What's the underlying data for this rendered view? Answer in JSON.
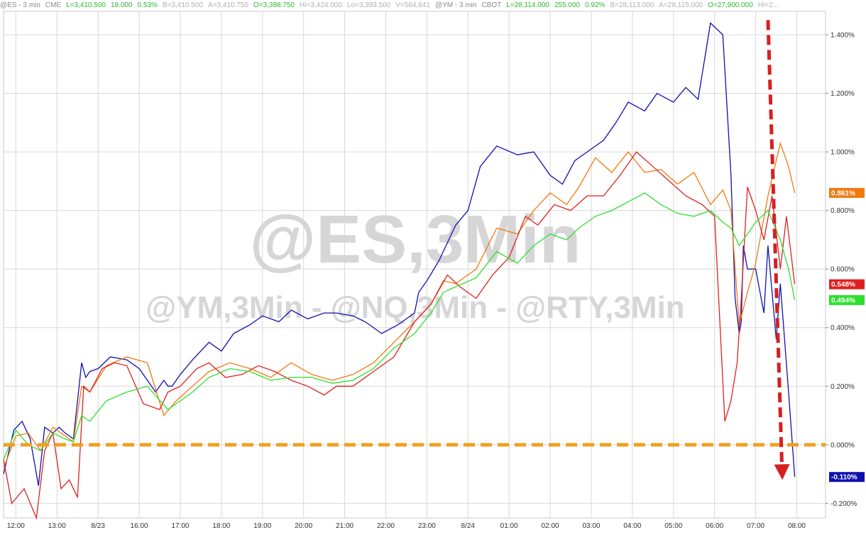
{
  "quote_bar": [
    {
      "text": "@ES - 3 min",
      "cls": "q-lbl"
    },
    {
      "text": "CME",
      "cls": "q-lbl"
    },
    {
      "text": "L=3,410.500",
      "cls": "q-val"
    },
    {
      "text": "18.000",
      "cls": "q-val"
    },
    {
      "text": "0.53%",
      "cls": "q-val"
    },
    {
      "text": "B=3,410.500",
      "cls": "q-dim"
    },
    {
      "text": "A=3,410.750",
      "cls": "q-dim"
    },
    {
      "text": "O=3,398.750",
      "cls": "q-val"
    },
    {
      "text": "Hi=3,424.000",
      "cls": "q-dim"
    },
    {
      "text": "Lo=3,393.500",
      "cls": "q-dim"
    },
    {
      "text": "V=564,641",
      "cls": "q-dim"
    },
    {
      "text": "@YM - 3 min",
      "cls": "q-lbl"
    },
    {
      "text": "CBOT",
      "cls": "q-lbl"
    },
    {
      "text": "L=28,114.000",
      "cls": "q-val"
    },
    {
      "text": "255.000",
      "cls": "q-val"
    },
    {
      "text": "0.92%",
      "cls": "q-val"
    },
    {
      "text": "B=28,113.000",
      "cls": "q-dim"
    },
    {
      "text": "A=28,115.000",
      "cls": "q-dim"
    },
    {
      "text": "O=27,900.000",
      "cls": "q-val"
    },
    {
      "text": "Hi=2...",
      "cls": "q-dim"
    }
  ],
  "chart_data": {
    "type": "line",
    "x_ticks": [
      "12:00",
      "13:00",
      "8/23",
      "16:00",
      "17:00",
      "18:00",
      "19:00",
      "20:00",
      "21:00",
      "22:00",
      "23:00",
      "8/24",
      "01:00",
      "02:00",
      "03:00",
      "04:00",
      "05:00",
      "06:00",
      "07:00",
      "08:00"
    ],
    "xlim": [
      0,
      20
    ],
    "ylim": [
      -0.25,
      1.48
    ],
    "y_ticks": [
      -0.2,
      0.0,
      0.2,
      0.4,
      0.6,
      0.8,
      1.0,
      1.2,
      1.4
    ],
    "y_tick_labels": [
      "-0.200%",
      "0.000%",
      "0.200%",
      "0.400%",
      "0.600%",
      "0.800%",
      "1.000%",
      "1.200%",
      "1.400%"
    ],
    "grid": true,
    "watermark": [
      "@ES,3Min",
      "@YM,3Min - @NQ,3Min - @RTY,3Min"
    ],
    "reference_line": {
      "y": 0.0,
      "color": "#f0a020",
      "style": "dashed"
    },
    "arrow": {
      "from": [
        18.6,
        1.45
      ],
      "to": [
        18.95,
        -0.12
      ],
      "color": "#d62020"
    },
    "series": [
      {
        "name": "@ES",
        "color": "#1010b0",
        "last_label": "-0.110%",
        "x": [
          0.0,
          0.25,
          0.45,
          0.65,
          0.85,
          1.0,
          1.1,
          1.2,
          1.35,
          1.5,
          1.7,
          1.9,
          2.0,
          2.1,
          2.3,
          2.6,
          3.0,
          3.3,
          3.7,
          3.9,
          4.0,
          4.1,
          4.3,
          4.6,
          5.0,
          5.3,
          5.6,
          6.0,
          6.3,
          6.7,
          7.0,
          7.4,
          7.8,
          8.1,
          8.5,
          8.8,
          9.2,
          9.6,
          10.0,
          10.1,
          10.3,
          10.6,
          11.0,
          11.3,
          11.6,
          12.0,
          12.5,
          12.9,
          13.3,
          13.6,
          13.9,
          14.2,
          14.6,
          14.9,
          15.2,
          15.6,
          15.9,
          16.3,
          16.6,
          16.9,
          17.2,
          17.5,
          17.7,
          17.8,
          17.9,
          17.95,
          18.0,
          18.1,
          18.3,
          18.5,
          18.6,
          18.8,
          18.9,
          19.1,
          19.25
        ],
        "y": [
          -0.1,
          0.05,
          0.08,
          0.02,
          -0.14,
          0.06,
          0.05,
          0.04,
          0.06,
          0.04,
          0.02,
          0.28,
          0.23,
          0.25,
          0.26,
          0.3,
          0.29,
          0.26,
          0.18,
          0.22,
          0.2,
          0.2,
          0.24,
          0.29,
          0.35,
          0.32,
          0.38,
          0.41,
          0.44,
          0.42,
          0.46,
          0.43,
          0.45,
          0.45,
          0.44,
          0.42,
          0.38,
          0.41,
          0.45,
          0.52,
          0.56,
          0.63,
          0.75,
          0.8,
          0.95,
          1.02,
          0.99,
          1.0,
          0.92,
          0.89,
          0.97,
          1.0,
          1.04,
          1.1,
          1.17,
          1.14,
          1.2,
          1.17,
          1.22,
          1.18,
          1.44,
          1.4,
          0.92,
          0.5,
          0.38,
          0.42,
          0.68,
          0.6,
          0.6,
          0.45,
          0.68,
          0.36,
          0.55,
          0.18,
          -0.11
        ]
      },
      {
        "name": "@NQ",
        "color": "#f07a10",
        "last_label": "0.861%",
        "x": [
          0.0,
          0.3,
          0.6,
          0.9,
          1.2,
          1.5,
          1.7,
          1.9,
          2.1,
          2.5,
          3.0,
          3.5,
          3.9,
          4.2,
          4.6,
          5.0,
          5.5,
          6.0,
          6.5,
          7.0,
          7.5,
          8.0,
          8.5,
          9.0,
          9.5,
          10.0,
          10.4,
          10.7,
          11.0,
          11.5,
          12.0,
          12.5,
          12.9,
          13.3,
          13.7,
          14.0,
          14.4,
          14.8,
          15.2,
          15.6,
          16.0,
          16.4,
          16.8,
          17.2,
          17.5,
          17.7,
          17.9,
          18.1,
          18.3,
          18.6,
          18.9,
          19.1,
          19.25
        ],
        "y": [
          -0.08,
          0.03,
          0.04,
          -0.02,
          0.06,
          0.03,
          0.01,
          0.2,
          0.18,
          0.27,
          0.3,
          0.28,
          0.1,
          0.15,
          0.2,
          0.25,
          0.28,
          0.26,
          0.23,
          0.28,
          0.24,
          0.22,
          0.24,
          0.28,
          0.35,
          0.42,
          0.48,
          0.56,
          0.55,
          0.6,
          0.74,
          0.72,
          0.8,
          0.86,
          0.82,
          0.88,
          0.98,
          0.93,
          1.0,
          0.93,
          0.94,
          0.89,
          0.93,
          0.82,
          0.87,
          0.8,
          0.41,
          0.52,
          0.62,
          0.85,
          1.03,
          0.95,
          0.86
        ]
      },
      {
        "name": "@RTY",
        "color": "#e02020",
        "last_label": "0.548%",
        "x": [
          0.0,
          0.2,
          0.5,
          0.8,
          1.0,
          1.2,
          1.4,
          1.6,
          1.8,
          1.95,
          2.1,
          2.4,
          2.7,
          3.0,
          3.4,
          3.8,
          4.0,
          4.3,
          4.7,
          5.0,
          5.4,
          5.8,
          6.2,
          6.6,
          7.0,
          7.4,
          7.8,
          8.1,
          8.5,
          9.0,
          9.5,
          10.0,
          10.4,
          10.8,
          11.1,
          11.5,
          11.9,
          12.3,
          12.7,
          13.0,
          13.4,
          13.8,
          14.2,
          14.6,
          15.0,
          15.4,
          15.8,
          16.2,
          16.6,
          17.0,
          17.3,
          17.55,
          17.7,
          17.85,
          17.95,
          18.1,
          18.3,
          18.5,
          18.7,
          18.9,
          19.05,
          19.25
        ],
        "y": [
          -0.05,
          -0.2,
          -0.15,
          -0.25,
          -0.02,
          0.04,
          -0.15,
          -0.12,
          -0.18,
          0.2,
          0.18,
          0.26,
          0.28,
          0.27,
          0.14,
          0.12,
          0.18,
          0.2,
          0.26,
          0.28,
          0.23,
          0.24,
          0.27,
          0.25,
          0.22,
          0.2,
          0.17,
          0.2,
          0.2,
          0.25,
          0.3,
          0.42,
          0.48,
          0.58,
          0.54,
          0.5,
          0.58,
          0.64,
          0.78,
          0.75,
          0.82,
          0.8,
          0.85,
          0.85,
          0.92,
          1.0,
          0.95,
          0.9,
          0.85,
          0.82,
          0.78,
          0.08,
          0.15,
          0.28,
          0.5,
          0.88,
          0.8,
          0.7,
          0.85,
          0.6,
          0.78,
          0.548
        ]
      },
      {
        "name": "@YM",
        "color": "#2ee02e",
        "last_label": "0.494%",
        "x": [
          0.0,
          0.3,
          0.6,
          0.9,
          1.2,
          1.5,
          1.7,
          1.9,
          2.1,
          2.5,
          3.0,
          3.5,
          4.0,
          4.3,
          4.6,
          5.0,
          5.5,
          6.0,
          6.5,
          7.0,
          7.5,
          8.0,
          8.5,
          9.0,
          9.5,
          10.0,
          10.4,
          10.7,
          11.0,
          11.5,
          12.0,
          12.5,
          12.9,
          13.3,
          13.7,
          14.0,
          14.4,
          14.8,
          15.2,
          15.6,
          16.0,
          16.4,
          16.8,
          17.2,
          17.5,
          17.7,
          17.9,
          18.1,
          18.3,
          18.6,
          18.9,
          19.1,
          19.25
        ],
        "y": [
          -0.05,
          0.05,
          0.0,
          -0.02,
          0.04,
          0.02,
          0.01,
          0.1,
          0.08,
          0.15,
          0.18,
          0.2,
          0.12,
          0.15,
          0.18,
          0.23,
          0.26,
          0.25,
          0.22,
          0.23,
          0.23,
          0.21,
          0.22,
          0.26,
          0.33,
          0.38,
          0.45,
          0.52,
          0.54,
          0.57,
          0.66,
          0.62,
          0.68,
          0.72,
          0.7,
          0.74,
          0.78,
          0.8,
          0.83,
          0.86,
          0.82,
          0.79,
          0.78,
          0.8,
          0.76,
          0.74,
          0.68,
          0.72,
          0.76,
          0.8,
          0.7,
          0.6,
          0.494
        ]
      }
    ]
  }
}
